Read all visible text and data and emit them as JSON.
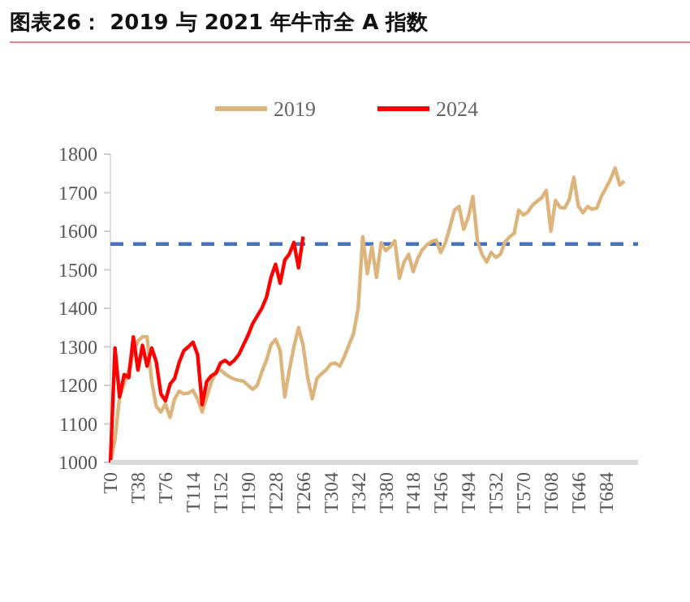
{
  "chart_data": {
    "type": "line",
    "title": "图表26： 2019 与 2021 年牛市全 A 指数",
    "legend": "top",
    "grid": false,
    "ylim": [
      1000,
      1800
    ],
    "yticks": [
      1000,
      1100,
      1200,
      1300,
      1400,
      1500,
      1600,
      1700,
      1800
    ],
    "categories": [
      "T0",
      null,
      null,
      null,
      null,
      null,
      "T38",
      null,
      null,
      null,
      null,
      null,
      "T76",
      null,
      null,
      null,
      null,
      null,
      "T114",
      null,
      null,
      null,
      null,
      null,
      "T152",
      null,
      null,
      null,
      null,
      null,
      "T190",
      null,
      null,
      null,
      null,
      null,
      "T228",
      null,
      null,
      null,
      null,
      null,
      "T266",
      null,
      null,
      null,
      null,
      null,
      "T304",
      null,
      null,
      null,
      null,
      null,
      "T342",
      null,
      null,
      null,
      null,
      null,
      "T380",
      null,
      null,
      null,
      null,
      null,
      "T418",
      null,
      null,
      null,
      null,
      null,
      "T456",
      null,
      null,
      null,
      null,
      null,
      "T494",
      null,
      null,
      null,
      null,
      null,
      "T532",
      null,
      null,
      null,
      null,
      null,
      "T570",
      null,
      null,
      null,
      null,
      null,
      "T608",
      null,
      null,
      null,
      null,
      null,
      "T646",
      null,
      null,
      null,
      null,
      null,
      "T684",
      null,
      null,
      null,
      null
    ],
    "ref_lines": [
      {
        "axis": "y",
        "value": 1567,
        "color": "#4472c4",
        "line_style": "dashed"
      }
    ],
    "series": [
      {
        "name": "2019",
        "color": "#dcb47c",
        "values": [
          1000,
          1060,
          1170,
          1205,
          1240,
          1285,
          1315,
          1326,
          1326,
          1210,
          1146,
          1131,
          1152,
          1117,
          1165,
          1185,
          1178,
          1180,
          1187,
          1165,
          1131,
          1170,
          1208,
          1235,
          1240,
          1230,
          1222,
          1216,
          1213,
          1211,
          1200,
          1190,
          1200,
          1235,
          1265,
          1305,
          1320,
          1290,
          1170,
          1240,
          1300,
          1350,
          1304,
          1220,
          1165,
          1218,
          1230,
          1240,
          1255,
          1258,
          1250,
          1275,
          1305,
          1335,
          1400,
          1586,
          1490,
          1560,
          1480,
          1570,
          1550,
          1560,
          1575,
          1478,
          1520,
          1540,
          1495,
          1530,
          1552,
          1565,
          1573,
          1577,
          1545,
          1570,
          1610,
          1655,
          1664,
          1605,
          1636,
          1690,
          1575,
          1540,
          1520,
          1545,
          1532,
          1540,
          1572,
          1585,
          1595,
          1655,
          1642,
          1650,
          1668,
          1678,
          1687,
          1706,
          1600,
          1680,
          1662,
          1660,
          1682,
          1740,
          1665,
          1648,
          1664,
          1657,
          1660,
          1690,
          1712,
          1735,
          1764,
          1720,
          1730
        ]
      },
      {
        "name": "2024",
        "color": "#ff0000",
        "values": [
          1000,
          1297,
          1170,
          1228,
          1220,
          1326,
          1240,
          1304,
          1250,
          1297,
          1261,
          1178,
          1160,
          1203,
          1218,
          1260,
          1290,
          1300,
          1312,
          1280,
          1150,
          1210,
          1225,
          1232,
          1258,
          1265,
          1255,
          1265,
          1280,
          1305,
          1330,
          1360,
          1380,
          1400,
          1428,
          1480,
          1514,
          1465,
          1525,
          1541,
          1571,
          1505,
          1586,
          null,
          null,
          null,
          null,
          null,
          null,
          null,
          null,
          null,
          null,
          null,
          null,
          null,
          null,
          null,
          null,
          null,
          null,
          null,
          null,
          null,
          null,
          null,
          null,
          null,
          null,
          null,
          null,
          null,
          null,
          null,
          null,
          null,
          null,
          null,
          null,
          null,
          null,
          null,
          null,
          null,
          null,
          null,
          null,
          null,
          null,
          null,
          null,
          null,
          null,
          null,
          null,
          null,
          null,
          null,
          null,
          null,
          null,
          null,
          null,
          null,
          null,
          null,
          null,
          null,
          null,
          null,
          null,
          null,
          null
        ]
      }
    ]
  }
}
